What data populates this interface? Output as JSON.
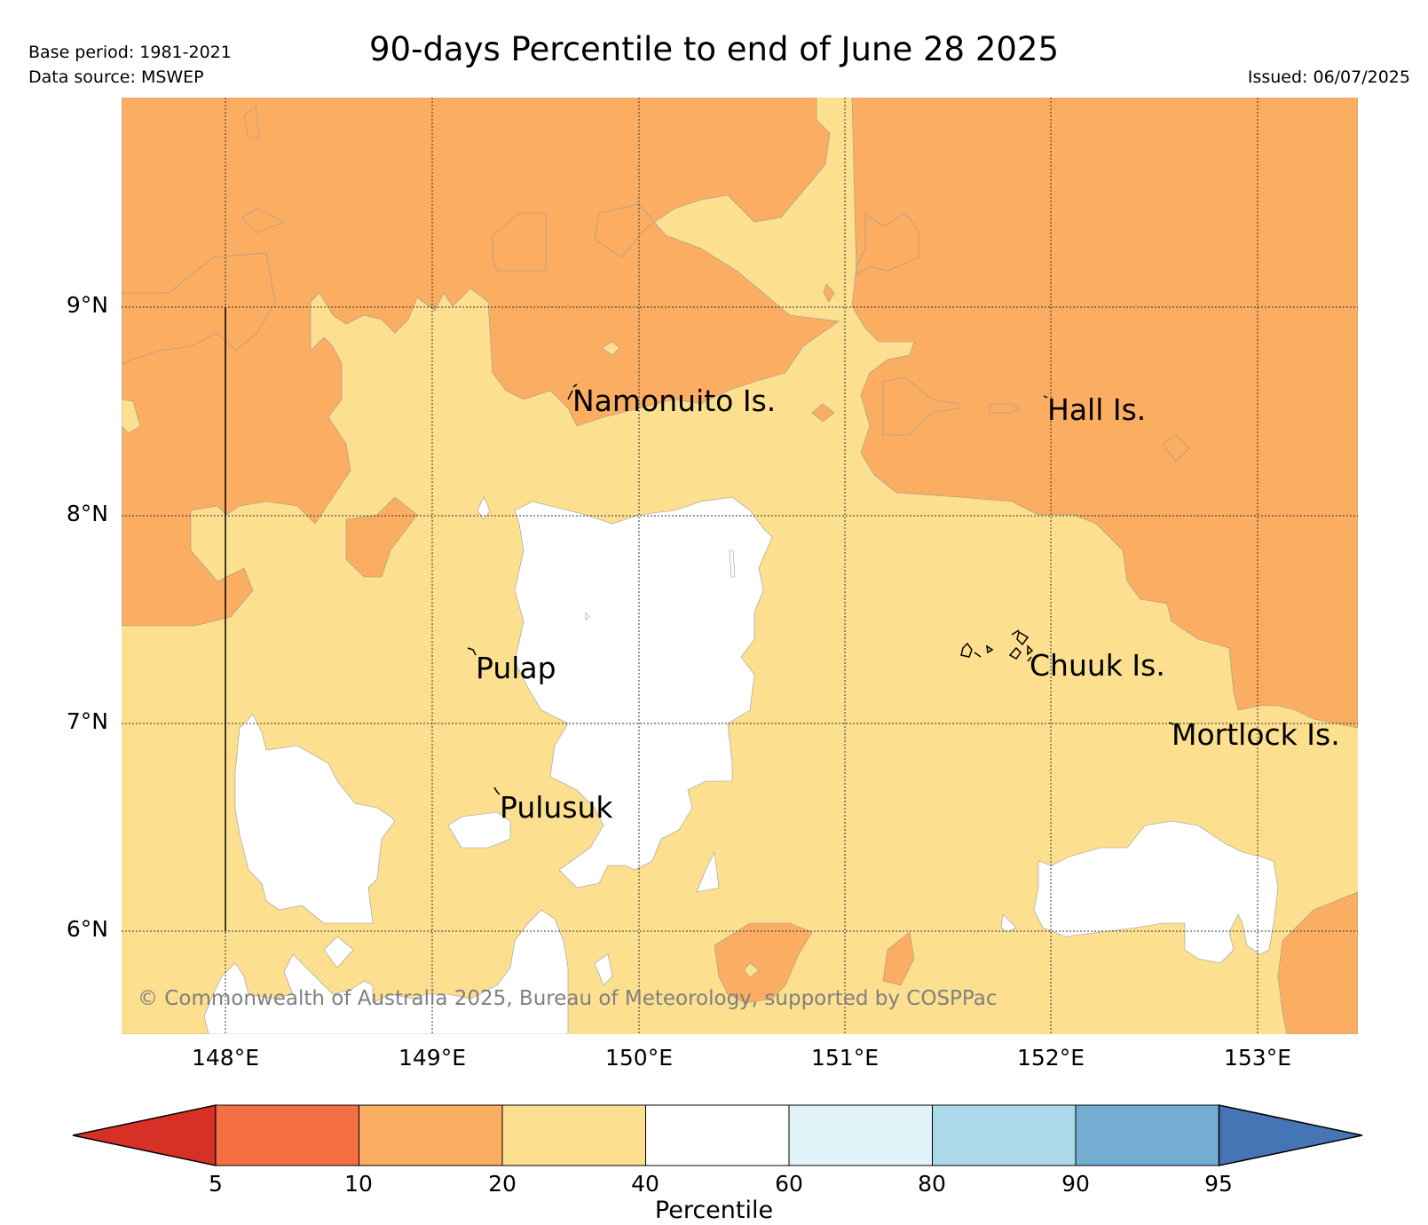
{
  "header": {
    "base_period": "Base period: 1981-2021",
    "data_source": "Data source: MSWEP",
    "title": "90-days Percentile to end of June 28 2025",
    "issued": "Issued: 06/07/2025"
  },
  "map": {
    "lon_range": [
      147.5,
      153.5
    ],
    "lat_range": [
      5.5,
      10.0
    ],
    "x_ticks": [
      "148°E",
      "149°E",
      "150°E",
      "151°E",
      "152°E",
      "153°E"
    ],
    "y_ticks": [
      "9°N",
      "8°N",
      "7°N",
      "6°N"
    ],
    "grid": "dotted",
    "fill_colors": {
      "p10_20": "#fbad62",
      "p20_40": "#fce08f",
      "p40_60": "#ffffff"
    },
    "places": [
      {
        "label": "Namonuito Is.",
        "lon": 149.7,
        "lat": 8.6
      },
      {
        "label": "Hall Is.",
        "lon": 152.0,
        "lat": 8.55
      },
      {
        "label": "Pulap",
        "lon": 149.2,
        "lat": 7.35
      },
      {
        "label": "Chuuk Is.",
        "lon": 151.8,
        "lat": 7.35
      },
      {
        "label": "Mortlock Is.",
        "lon": 152.6,
        "lat": 7.0
      },
      {
        "label": "Pulusuk",
        "lon": 149.3,
        "lat": 6.7
      }
    ],
    "copyright": "© Commonwealth of Australia 2025, Bureau of Meteorology, supported by COSPPac"
  },
  "colorbar": {
    "label": "Percentile",
    "ticks": [
      "5",
      "10",
      "20",
      "40",
      "60",
      "80",
      "90",
      "95"
    ],
    "colors": [
      "#d73027",
      "#f46d43",
      "#fbad62",
      "#fce08f",
      "#ffffff",
      "#e0f3f8",
      "#abd9e9",
      "#74add1",
      "#4575b4"
    ]
  }
}
